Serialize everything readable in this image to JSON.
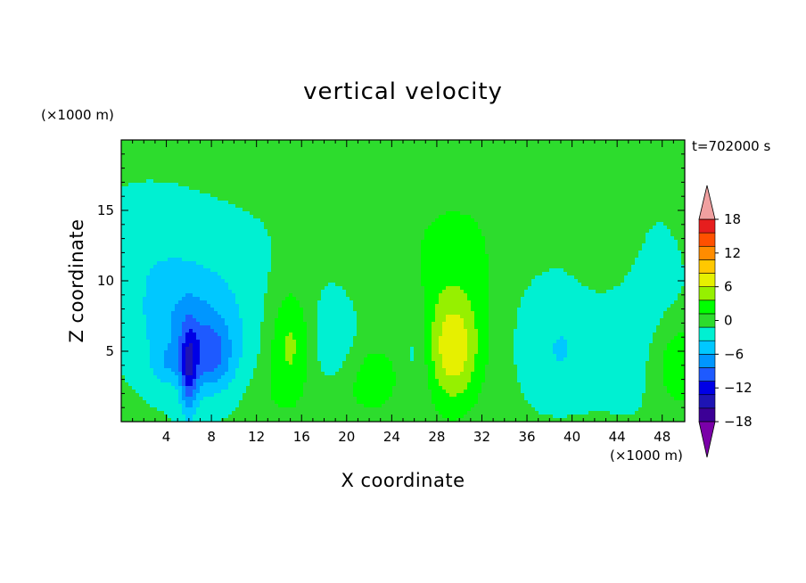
{
  "chart_data": {
    "type": "heatmap",
    "title": "vertical velocity",
    "xlabel": "X coordinate",
    "ylabel": "Z coordinate",
    "x_unit": "(×1000 m)",
    "y_unit": "(×1000 m)",
    "time_label": "t=702000 s",
    "xlim": [
      0,
      50
    ],
    "ylim": [
      0,
      20
    ],
    "x_ticks": [
      4,
      8,
      12,
      16,
      20,
      24,
      28,
      32,
      36,
      40,
      44,
      48
    ],
    "y_ticks": [
      5,
      10,
      15
    ],
    "colorbar": {
      "ticks": [
        18,
        12,
        6,
        0,
        -6,
        -12,
        -18
      ],
      "levels": [
        -21,
        -18,
        -15,
        -12,
        -9,
        -6,
        -3,
        0,
        3,
        6,
        9,
        12,
        15,
        18,
        21
      ],
      "colors": [
        "#7a00a8",
        "#3c0096",
        "#1e14b4",
        "#0000e6",
        "#1e5aff",
        "#0096ff",
        "#00c8ff",
        "#00f0d2",
        "#2ddc2d",
        "#00ff00",
        "#96f000",
        "#e6f000",
        "#ffc800",
        "#ff8c00",
        "#ff5000",
        "#e61e1e",
        "#f0a0a0"
      ]
    },
    "background_value": 0.6,
    "features": [
      {
        "x": 2.0,
        "z": 12.0,
        "sx": 3.5,
        "sz": 3.0,
        "w": -2.2
      },
      {
        "x": 9.0,
        "z": 9.0,
        "sx": 4.5,
        "sz": 4.0,
        "w": -1.8
      },
      {
        "x": 6.0,
        "z": 6.5,
        "sx": 3.0,
        "sz": 2.8,
        "w": -6.0
      },
      {
        "x": 6.0,
        "z": 3.5,
        "sx": 0.55,
        "sz": 2.2,
        "w": -10.0
      },
      {
        "x": 8.0,
        "z": 4.5,
        "sx": 1.4,
        "sz": 1.7,
        "w": -7.0
      },
      {
        "x": 4.0,
        "z": 4.0,
        "sx": 1.0,
        "sz": 0.9,
        "w": -3.0
      },
      {
        "x": 15.0,
        "z": 5.5,
        "sx": 1.4,
        "sz": 3.0,
        "w": 6.5
      },
      {
        "x": 18.5,
        "z": 6.0,
        "sx": 1.6,
        "sz": 2.2,
        "w": -2.5
      },
      {
        "x": 22.5,
        "z": 3.0,
        "sx": 1.5,
        "sz": 1.6,
        "w": 4.5
      },
      {
        "x": 26.0,
        "z": 5.0,
        "sx": 1.0,
        "sz": 3.0,
        "w": -3.0
      },
      {
        "x": 29.5,
        "z": 7.0,
        "sx": 3.0,
        "sz": 4.5,
        "w": 4.5
      },
      {
        "x": 29.5,
        "z": 5.0,
        "sx": 1.4,
        "sz": 2.5,
        "w": 7.0
      },
      {
        "x": 29.5,
        "z": 14.0,
        "sx": 5.0,
        "sz": 3.0,
        "w": 1.5
      },
      {
        "x": 38.0,
        "z": 6.0,
        "sx": 3.5,
        "sz": 3.5,
        "w": -2.2
      },
      {
        "x": 39.0,
        "z": 5.0,
        "sx": 0.8,
        "sz": 1.2,
        "w": -2.0
      },
      {
        "x": 43.0,
        "z": 13.0,
        "sx": 1.8,
        "sz": 2.5,
        "w": 2.8
      },
      {
        "x": 49.5,
        "z": 4.0,
        "sx": 1.4,
        "sz": 2.0,
        "w": 6.0
      },
      {
        "x": 46.0,
        "z": 8.0,
        "sx": 3.0,
        "sz": 5.0,
        "w": -1.7
      },
      {
        "x": 13.0,
        "z": 1.5,
        "sx": 1.5,
        "sz": 1.4,
        "w": 1.2
      },
      {
        "x": 20.0,
        "z": 1.5,
        "sx": 1.5,
        "sz": 1.2,
        "w": 1.0
      }
    ]
  }
}
